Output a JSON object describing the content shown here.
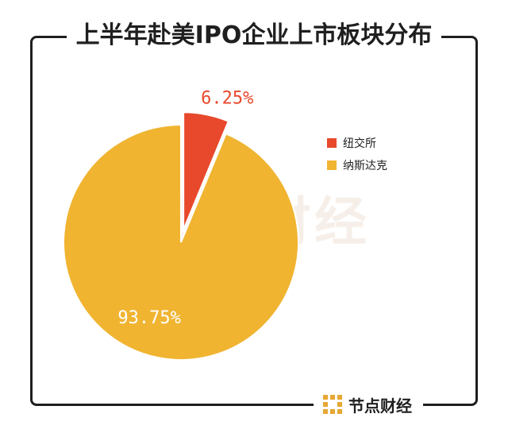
{
  "title": "上半年赴美IPO企业上市板块分布",
  "brand": {
    "logo_icon": "jiedian-logo-icon",
    "name": "节点财经"
  },
  "watermark": {
    "text": "节点财经"
  },
  "colors": {
    "nyse": "#e8492c",
    "nasdaq": "#f0b431",
    "frame": "#1f1f1f"
  },
  "chart_data": {
    "type": "pie",
    "title": "上半年赴美IPO企业上市板块分布",
    "categories": [
      "纽交所",
      "纳斯达克"
    ],
    "values": [
      6.25,
      93.75
    ],
    "labels": [
      "6.25%",
      "93.75%"
    ],
    "colors": [
      "#e8492c",
      "#f0b431"
    ],
    "exploded": [
      true,
      false
    ],
    "legend": {
      "position": "right",
      "entries": [
        "纽交所",
        "纳斯达克"
      ]
    }
  }
}
